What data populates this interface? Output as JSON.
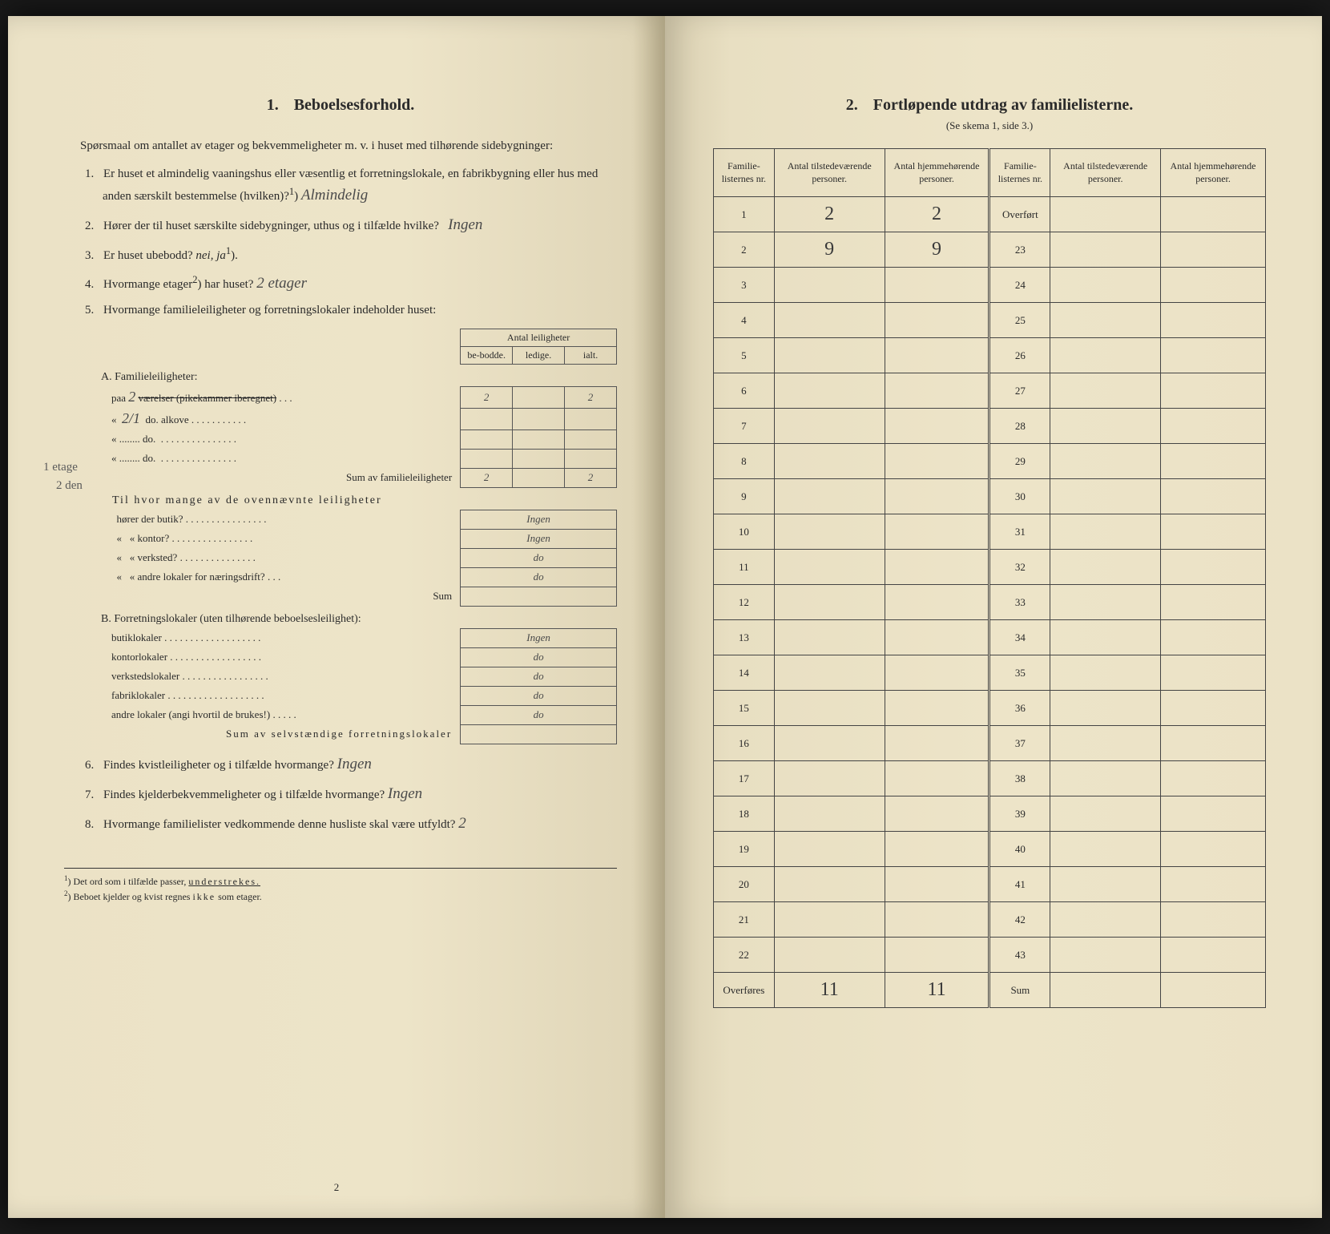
{
  "left": {
    "section_num": "1.",
    "section_title": "Beboelsesforhold.",
    "intro": "Spørsmaal om antallet av etager og bekvemmeligheter m. v. i huset med tilhørende sidebygninger:",
    "questions": {
      "q1_num": "1.",
      "q1_text": "Er huset et almindelig vaaningshus eller væsentlig et forretningslokale, en fabrikbygning eller hus med anden særskilt bestemmelse (hvilken)?",
      "q1_sup": "1",
      "q1_answer": "Almindelig",
      "q2_num": "2.",
      "q2_text_a": "Hører der til huset særskilte sidebygninger, uthus og i tilfælde hvilke?",
      "q2_answer": "Ingen",
      "q3_num": "3.",
      "q3_text": "Er huset ubebodd?",
      "q3_answer": "nei, ja",
      "q3_sup": "1",
      "q4_num": "4.",
      "q4_text": "Hvormange etager",
      "q4_sup": "2",
      "q4_text_b": "har huset?",
      "q4_answer": "2 etager",
      "q5_num": "5.",
      "q5_text": "Hvormange familieleiligheter og forretningslokaler indeholder huset:",
      "q6_num": "6.",
      "q6_text": "Findes kvistleiligheter og i tilfælde hvormange?",
      "q6_answer": "Ingen",
      "q7_num": "7.",
      "q7_text": "Findes kjelderbekvemmeligheter og i tilfælde hvormange?",
      "q7_answer": "Ingen",
      "q8_num": "8.",
      "q8_text": "Hvormange familielister vedkommende denne husliste skal være utfyldt?",
      "q8_answer": "2"
    },
    "table": {
      "header_title": "Antal leiligheter",
      "col_bebodde": "be-bodde.",
      "col_ledige": "ledige.",
      "col_ialt": "ialt.",
      "sectionA": "A. Familieleiligheter:",
      "rowA1_label": "paa",
      "rowA1_hw1": "2",
      "rowA1_text": "værelser (pikekammer iberegnet)",
      "rowA1_val1": "2",
      "rowA1_val3": "2",
      "rowA2_hw": "2/1",
      "rowA2_text": "do. alkove",
      "rowA3_text": "do.",
      "rowA4_text": "do.",
      "sumA_label": "Sum av familieleiligheter",
      "sumA_val1": "2",
      "sumA_val3": "2",
      "subQ_intro": "Til hvor mange av de ovennævnte leiligheter",
      "subQ1": "hører der butik?",
      "subQ1_ans": "Ingen",
      "subQ2": "kontor?",
      "subQ2_ans": "Ingen",
      "subQ3": "verksted?",
      "subQ3_ans": "do",
      "subQ4": "andre lokaler for næringsdrift?",
      "subQ4_ans": "do",
      "sum_label": "Sum",
      "sectionB": "B. Forretningslokaler (uten tilhørende beboelsesleilighet):",
      "rowB1": "butiklokaler",
      "rowB1_ans": "Ingen",
      "rowB2": "kontorlokaler",
      "rowB2_ans": "do",
      "rowB3": "verkstedslokaler",
      "rowB3_ans": "do",
      "rowB4": "fabriklokaler",
      "rowB4_ans": "do",
      "rowB5": "andre lokaler (angi hvortil de brukes!)",
      "rowB5_ans": "do",
      "sumB_label": "Sum av selvstændige forretningslokaler"
    },
    "margin_note1": "1 etage",
    "margin_note2": "2 den",
    "footnote1_sup": "1",
    "footnote1": "Det ord som i tilfælde passer, ",
    "footnote1_u": "understrekes.",
    "footnote2_sup": "2",
    "footnote2": "Beboet kjelder og kvist regnes ",
    "footnote2_sp": "ikke",
    "footnote2_b": " som etager.",
    "page_num": "2"
  },
  "right": {
    "section_num": "2.",
    "section_title": "Fortløpende utdrag av familielisterne.",
    "subtitle": "(Se skema 1, side 3.)",
    "col1": "Familie-listernes nr.",
    "col2": "Antal tilstedeværende personer.",
    "col3": "Antal hjemmehørende personer.",
    "overfort": "Overført",
    "overfores": "Overføres",
    "sum": "Sum",
    "rows_left": [
      "1",
      "2",
      "3",
      "4",
      "5",
      "6",
      "7",
      "8",
      "9",
      "10",
      "11",
      "12",
      "13",
      "14",
      "15",
      "16",
      "17",
      "18",
      "19",
      "20",
      "21",
      "22"
    ],
    "rows_right": [
      "23",
      "24",
      "25",
      "26",
      "27",
      "28",
      "29",
      "30",
      "31",
      "32",
      "33",
      "34",
      "35",
      "36",
      "37",
      "38",
      "39",
      "40",
      "41",
      "42",
      "43"
    ],
    "data": {
      "r1_c2": "2",
      "r1_c3": "2",
      "r2_c2": "9",
      "r2_c3": "9",
      "sum_c2": "11",
      "sum_c3": "11"
    }
  }
}
